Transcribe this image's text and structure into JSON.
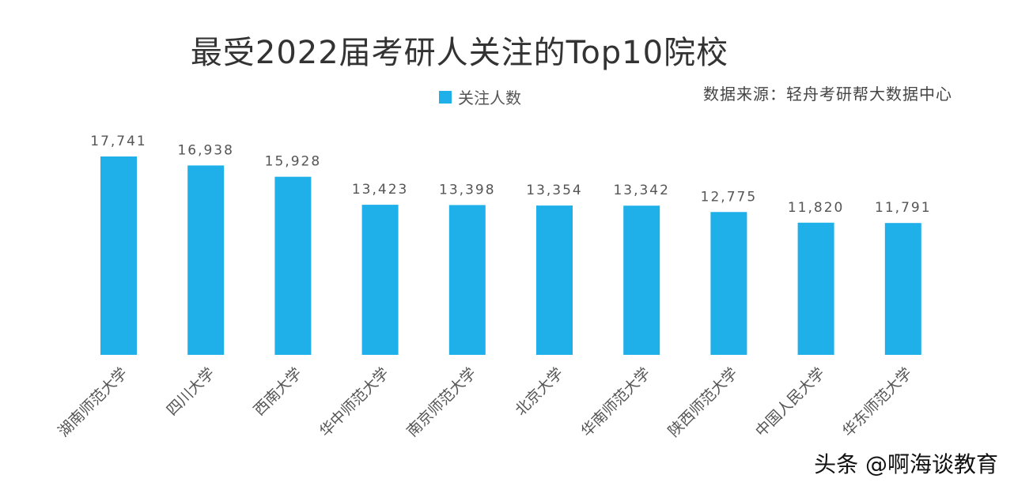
{
  "chart_data": {
    "type": "bar",
    "title": "最受2022届考研人关注的Top10院校",
    "legend": {
      "label": "关注人数",
      "placement": "top-center"
    },
    "source": "数据来源：轻舟考研帮大数据中心",
    "categories": [
      "湖南师范大学",
      "四川大学",
      "西南大学",
      "华中师范大学",
      "南京师范大学",
      "北京大学",
      "华南师范大学",
      "陕西师范大学",
      "中国人民大学",
      "华东师范大学"
    ],
    "series": [
      {
        "name": "关注人数",
        "values": [
          17741,
          16938,
          15928,
          13423,
          13398,
          13354,
          13342,
          12775,
          11820,
          11791
        ],
        "labels": [
          "17,741",
          "16,938",
          "15,928",
          "13,423",
          "13,398",
          "13,354",
          "13,342",
          "12,775",
          "11,820",
          "11,791"
        ]
      }
    ],
    "xlabel": "",
    "ylabel": "",
    "ylim": [
      0,
      20000
    ],
    "grid": false,
    "bar_color": "#1fb0ea"
  },
  "watermark": "头条 @啊海谈教育"
}
